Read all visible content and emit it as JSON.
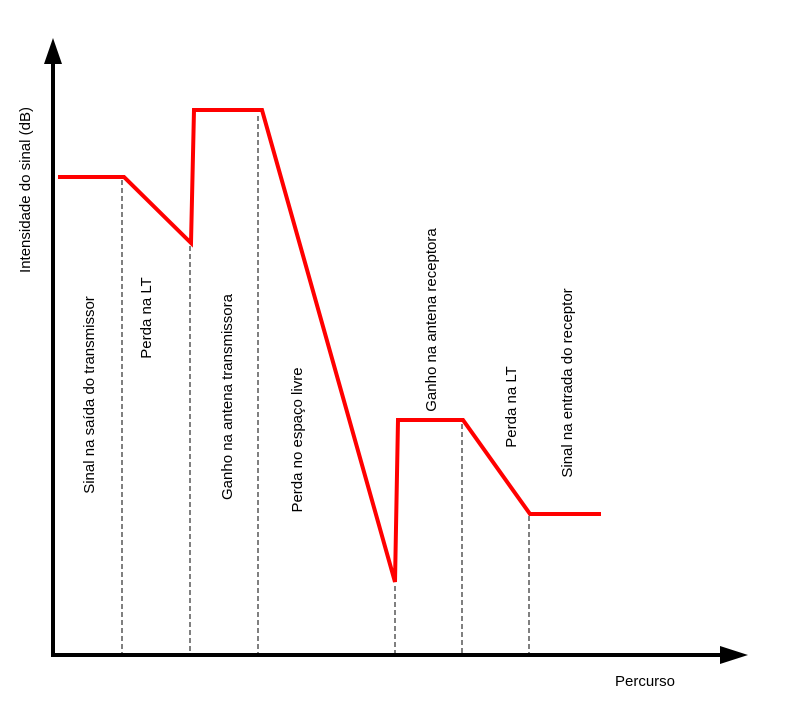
{
  "y_axis_label": "Intensidade do sinal (dB)",
  "x_axis_label": "Percurso",
  "segments": [
    "Sinal na saída do transmissor",
    "Perda na LT",
    "Ganho na antena transmissora",
    "Perda no espaço livre",
    "Ganho na antena receptora",
    "Perda na LT",
    "Sinal na entrada do receptor"
  ]
}
